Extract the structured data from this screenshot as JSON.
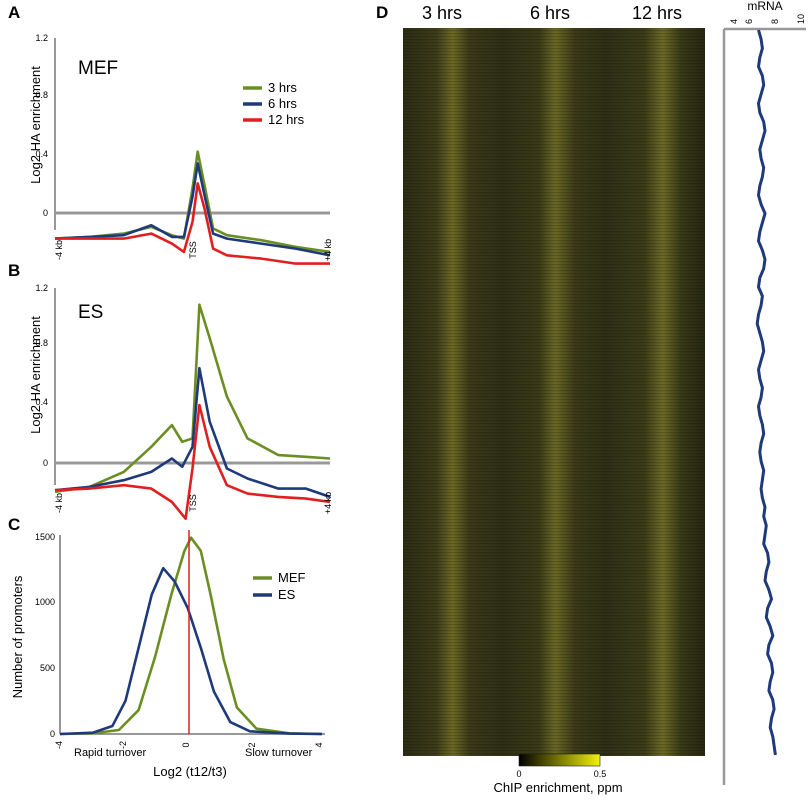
{
  "figure": {
    "panel_letters": [
      "A",
      "B",
      "C",
      "D"
    ]
  },
  "chart_data": [
    {
      "panel": "A",
      "type": "line",
      "condition_label": "MEF",
      "ylabel": "Log2 HA enrichment",
      "xlabel": "",
      "x_ticks": [
        "-4 kb",
        "TSS",
        "+4 kb"
      ],
      "y_ticks": [
        "0",
        "0.4",
        "0.8",
        "1.2"
      ],
      "xlim": [
        -4,
        4
      ],
      "ylim": [
        -0.2,
        1.2
      ],
      "baseline": 0,
      "legend_position": "top-right",
      "series": [
        {
          "name": "3 hrs",
          "color": "#6b8e23",
          "points": [
            [
              -4,
              0.0
            ],
            [
              -3,
              0.01
            ],
            [
              -2,
              0.03
            ],
            [
              -1.2,
              0.07
            ],
            [
              -0.6,
              0.02
            ],
            [
              -0.25,
              0.0
            ],
            [
              0,
              0.3
            ],
            [
              0.15,
              0.52
            ],
            [
              0.35,
              0.32
            ],
            [
              0.6,
              0.06
            ],
            [
              1,
              0.02
            ],
            [
              2,
              -0.01
            ],
            [
              3,
              -0.05
            ],
            [
              4,
              -0.08
            ]
          ]
        },
        {
          "name": "6 hrs",
          "color": "#1f3a7a",
          "points": [
            [
              -4,
              0.0
            ],
            [
              -3,
              0.01
            ],
            [
              -2,
              0.02
            ],
            [
              -1.2,
              0.08
            ],
            [
              -0.6,
              0.01
            ],
            [
              -0.25,
              0.01
            ],
            [
              0,
              0.25
            ],
            [
              0.15,
              0.45
            ],
            [
              0.35,
              0.26
            ],
            [
              0.6,
              0.03
            ],
            [
              1,
              0.0
            ],
            [
              2,
              -0.03
            ],
            [
              3,
              -0.06
            ],
            [
              4,
              -0.1
            ]
          ]
        },
        {
          "name": "12 hrs",
          "color": "#e02020",
          "points": [
            [
              -4,
              0.0
            ],
            [
              -3,
              0.0
            ],
            [
              -2,
              0.0
            ],
            [
              -1.2,
              0.03
            ],
            [
              -0.6,
              -0.03
            ],
            [
              -0.25,
              -0.08
            ],
            [
              0,
              0.1
            ],
            [
              0.15,
              0.33
            ],
            [
              0.35,
              0.18
            ],
            [
              0.6,
              -0.06
            ],
            [
              1,
              -0.1
            ],
            [
              2,
              -0.12
            ],
            [
              3,
              -0.15
            ],
            [
              4,
              -0.15
            ]
          ]
        }
      ]
    },
    {
      "panel": "B",
      "type": "line",
      "condition_label": "ES",
      "ylabel": "Log2 HA enrichment",
      "xlabel": "",
      "x_ticks": [
        "-4 kb",
        "TSS",
        "+4 kb"
      ],
      "y_ticks": [
        "0",
        "0.4",
        "0.8",
        "1.2"
      ],
      "xlim": [
        -4,
        4
      ],
      "ylim": [
        -0.2,
        1.2
      ],
      "baseline": 0,
      "series": [
        {
          "name": "3 hrs",
          "color": "#6b8e23",
          "points": [
            [
              -4,
              -0.02
            ],
            [
              -3,
              0.01
            ],
            [
              -2,
              0.1
            ],
            [
              -1.2,
              0.25
            ],
            [
              -0.6,
              0.38
            ],
            [
              -0.3,
              0.28
            ],
            [
              0,
              0.3
            ],
            [
              0.2,
              1.1
            ],
            [
              0.5,
              0.9
            ],
            [
              1,
              0.55
            ],
            [
              1.6,
              0.3
            ],
            [
              2.5,
              0.2
            ],
            [
              3.3,
              0.19
            ],
            [
              4,
              0.18
            ]
          ]
        },
        {
          "name": "6 hrs",
          "color": "#1f3a7a",
          "points": [
            [
              -4,
              -0.01
            ],
            [
              -3,
              0.01
            ],
            [
              -2,
              0.05
            ],
            [
              -1.2,
              0.1
            ],
            [
              -0.6,
              0.18
            ],
            [
              -0.3,
              0.13
            ],
            [
              0,
              0.25
            ],
            [
              0.2,
              0.72
            ],
            [
              0.5,
              0.4
            ],
            [
              1,
              0.12
            ],
            [
              1.6,
              0.06
            ],
            [
              2.5,
              0.0
            ],
            [
              3.3,
              0.0
            ],
            [
              4,
              -0.05
            ]
          ]
        },
        {
          "name": "12 hrs",
          "color": "#e02020",
          "points": [
            [
              -4,
              -0.01
            ],
            [
              -3,
              0.0
            ],
            [
              -2,
              0.02
            ],
            [
              -1.2,
              0.0
            ],
            [
              -0.6,
              -0.08
            ],
            [
              -0.2,
              -0.18
            ],
            [
              0,
              0.12
            ],
            [
              0.2,
              0.5
            ],
            [
              0.5,
              0.25
            ],
            [
              1,
              0.02
            ],
            [
              1.6,
              -0.03
            ],
            [
              2.5,
              -0.05
            ],
            [
              3.3,
              -0.06
            ],
            [
              4,
              -0.08
            ]
          ]
        }
      ]
    },
    {
      "panel": "C",
      "type": "line",
      "ylabel": "Number of promoters",
      "xlabel": "Log2 (t12/t3)",
      "x_ticks": [
        "-4",
        "-2",
        "0",
        "2",
        "4"
      ],
      "y_ticks": [
        "0",
        "500",
        "1000",
        "1500"
      ],
      "xlim": [
        -4,
        4
      ],
      "ylim": [
        0,
        1500
      ],
      "vline_x": 0,
      "vline_color": "#e02020",
      "annotations": [
        "Rapid turnover",
        "Slow turnover"
      ],
      "legend_position": "right",
      "series": [
        {
          "name": "MEF",
          "color": "#6b8e23",
          "points": [
            [
              -4,
              0
            ],
            [
              -3,
              5
            ],
            [
              -2.2,
              30
            ],
            [
              -1.6,
              180
            ],
            [
              -1.1,
              580
            ],
            [
              -0.6,
              1050
            ],
            [
              -0.2,
              1380
            ],
            [
              0,
              1480
            ],
            [
              0.3,
              1380
            ],
            [
              0.6,
              1050
            ],
            [
              1,
              560
            ],
            [
              1.4,
              200
            ],
            [
              2,
              40
            ],
            [
              3,
              5
            ],
            [
              4,
              0
            ]
          ]
        },
        {
          "name": "ES",
          "color": "#1f3a7a",
          "points": [
            [
              -4,
              0
            ],
            [
              -3,
              10
            ],
            [
              -2.4,
              60
            ],
            [
              -2,
              250
            ],
            [
              -1.6,
              650
            ],
            [
              -1.2,
              1050
            ],
            [
              -0.85,
              1250
            ],
            [
              -0.5,
              1150
            ],
            [
              -0.1,
              950
            ],
            [
              0.3,
              650
            ],
            [
              0.7,
              320
            ],
            [
              1.2,
              90
            ],
            [
              1.8,
              20
            ],
            [
              3,
              3
            ],
            [
              4,
              0
            ]
          ]
        }
      ]
    },
    {
      "panel": "D",
      "type": "heatmap",
      "columns": [
        "3 hrs",
        "6 hrs",
        "12 hrs"
      ],
      "colorbar_label": "ChIP enrichment, ppm",
      "colorbar_ticks": [
        "0",
        "0.5"
      ],
      "colorbar_range": [
        0,
        0.5
      ],
      "low_color": "#000000",
      "high_color": "#f2f20a",
      "mRNA_title": "mRNA",
      "mRNA_ticks": [
        "4",
        "6",
        "8",
        "10"
      ],
      "mRNA_range": [
        4,
        10
      ],
      "mRNA_color": "#1f3a7a",
      "mRNA_profile": [
        6.5,
        6.7,
        6.8,
        6.6,
        6.5,
        6.8,
        6.9,
        6.7,
        6.5,
        6.6,
        6.9,
        7.0,
        6.8,
        6.6,
        6.7,
        6.9,
        6.8,
        6.6,
        6.5,
        6.7,
        7.0,
        6.8,
        6.6,
        6.5,
        6.8,
        7.0,
        6.9,
        6.6,
        6.5,
        6.8,
        6.7,
        6.5,
        6.4,
        6.6,
        6.8,
        6.9,
        6.7,
        6.5,
        6.6,
        6.8,
        6.7,
        6.5,
        6.6,
        6.8,
        6.9,
        6.7,
        6.6,
        6.7,
        6.9,
        6.8,
        6.7,
        6.8,
        7.0,
        6.9,
        7.1,
        7.0,
        6.9,
        7.2,
        7.3,
        7.1,
        7.0,
        7.3,
        7.5,
        7.2,
        7.1,
        7.4,
        7.6,
        7.3,
        7.2,
        7.5,
        7.6,
        7.4,
        7.3,
        7.6,
        7.7,
        7.5,
        7.4,
        7.6,
        7.7,
        7.8
      ]
    }
  ]
}
